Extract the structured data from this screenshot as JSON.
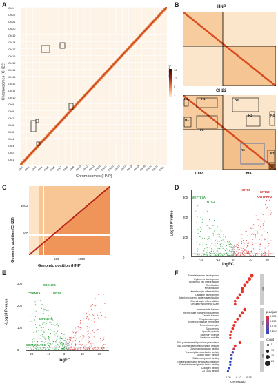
{
  "panels": {
    "A": {
      "label": "A",
      "y_axis_title": "Chromosomes (CH22)",
      "x_axis_title": "Chromosomes (HNP)",
      "y_ticks": [
        "ChrX",
        "Chr22",
        "Chr21",
        "Chr20",
        "Chr19",
        "Chr18",
        "Chr17",
        "Chr16",
        "Chr15",
        "Chr14",
        "Chr13",
        "Chr12",
        "Chr11",
        "Chr10",
        "Chr9",
        "Chr8",
        "Chr7",
        "Chr6",
        "Chr5",
        "Chr4",
        "Chr3",
        "Chr2",
        "Chr1"
      ],
      "x_ticks": [
        "Chr1",
        "Chr2",
        "Chr3",
        "Chr4",
        "Chr5",
        "Chr6",
        "Chr7",
        "Chr8",
        "Chr9",
        "Chr10",
        "Chr11",
        "Chr12",
        "Chr13",
        "Chr14",
        "Chr15",
        "Chr16",
        "Chr17",
        "Chr18",
        "Chr19",
        "Chr20",
        "Chr21",
        "Chr22",
        "ChrX"
      ],
      "colorbar": {
        "title": "Log2(N links)",
        "ticks": [
          "16",
          "12",
          "5",
          "1"
        ]
      }
    },
    "B": {
      "label": "B",
      "top_title": "HNP",
      "bottom_title": "CH22",
      "regions": [
        "R1",
        "P1",
        "R5",
        "H1",
        "P2",
        "H2",
        "R4",
        "R3",
        "P3",
        "R2"
      ],
      "x_ticks": [
        "Chr2",
        "Chr4"
      ]
    },
    "C": {
      "label": "C",
      "y_axis_title": "Genomic position (CH22)",
      "x_axis_title": "Genomic position (HNP)",
      "y_ticks": [
        "1000",
        "500"
      ],
      "x_ticks": [
        "500",
        "1000"
      ]
    },
    "D": {
      "label": "D",
      "y_axis_title": "-Log10 P-value",
      "x_axis_title": "logFC",
      "y_ticks": [
        "300",
        "200",
        "100",
        "0"
      ],
      "x_ticks": [
        "-20",
        "-10",
        "0",
        "10",
        "20"
      ],
      "genes_up": [
        "KRT80",
        "KRT18",
        "KRT8",
        "PKP2"
      ],
      "genes_down": [
        "METTL7A",
        "TMTC1"
      ]
    },
    "E": {
      "label": "E",
      "y_axis_title": "-Log10 P-value",
      "x_axis_title": "logFC",
      "y_ticks": [
        "300",
        "200",
        "100",
        "0"
      ],
      "x_ticks": [
        "-20",
        "-10",
        "0",
        "10",
        "20"
      ],
      "genes": [
        "CDKN2B",
        "CDKN2A",
        "MTAP",
        "MIR31HG",
        "CDKN2B-AS1"
      ]
    },
    "F": {
      "label": "F",
      "x_axis_title": "GeneRatio",
      "x_ticks": [
        "0.05",
        "0.10",
        "0.15"
      ],
      "groups": [
        "BP",
        "CC",
        "MF"
      ],
      "terms_bp": [
        "Skeletal system development",
        "Epidermis development",
        "Epidermal cell differentiation",
        "Cornification",
        "Keratinization",
        "Keratinocyte differentiation",
        "Cartilage development",
        "Anterior/posterior pattern specification",
        "Chondrocyte differentiation",
        "Cellular response to cAMP"
      ],
      "terms_cc": [
        "Intermediate filament",
        "Intermediate filament cytoskeleton",
        "Keratin filament",
        "Cytoplasmic region",
        "Secretory granule membrane",
        "Receptor complex",
        "Sarcolemma",
        "Specific granule",
        "Secretory granule",
        "Centriolar satellite"
      ],
      "terms_mf": [
        "RNA polymerase II proximal promoter sequence-specific DNA binding",
        "RNA polymerase II transcription regulatory region sequence-specific DNA binding",
        "Glycosaminoglycan binding",
        "Transcription coactivator activity",
        "Growth factor binding",
        "Sulfur compound binding",
        "Extracellular matrix structural constituent",
        "Platelet-derived growth factor binding",
        "Collagen binding",
        "AT DNA binding"
      ],
      "legend_padj_title": "p.adjust",
      "legend_padj_ticks": [
        "0.025",
        "0.050",
        "0.075",
        "0.100"
      ],
      "legend_count_title": "count",
      "legend_count_ticks": [
        "5",
        "10",
        "15",
        "20"
      ]
    }
  }
}
